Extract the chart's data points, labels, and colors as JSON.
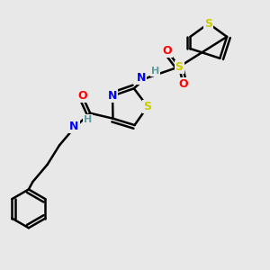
{
  "background_color": "#e8e8e8",
  "bond_color": "#000000",
  "N_color": "#0000ff",
  "O_color": "#ff0000",
  "S_color": "#cccc00",
  "H_color": "#5f9ea0",
  "figsize": [
    3.0,
    3.0
  ],
  "dpi": 100,
  "xlim": [
    0,
    10
  ],
  "ylim": [
    0,
    10
  ]
}
